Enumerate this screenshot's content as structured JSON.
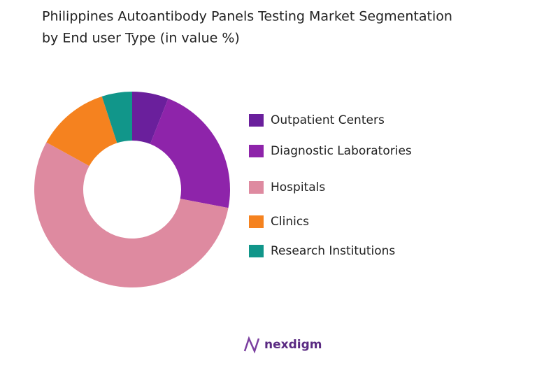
{
  "chart_data": {
    "type": "donut",
    "title": [
      "Philippines Autoantibody Panels Testing Market Segmentation",
      "by End user Type (in value %)"
    ],
    "categories": [
      "Outpatient Centers",
      "Diagnostic Laboratories",
      "Hospitals",
      "Clinics",
      "Research Institutions"
    ],
    "values": [
      6,
      22,
      55,
      12,
      5
    ],
    "colors": [
      "#6a1f9c",
      "#8e24aa",
      "#de8aa0",
      "#f5821f",
      "#11968a"
    ],
    "legend": "right"
  },
  "logo": "nexdigm"
}
